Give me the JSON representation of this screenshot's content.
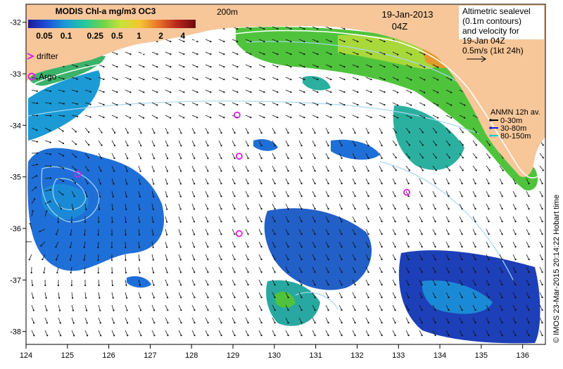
{
  "colorbar": {
    "title": "MODIS Chl-a mg/m3 OC3",
    "ticks": [
      "0.05",
      "0.1",
      "0.25",
      "0.5",
      "1",
      "2",
      "4"
    ],
    "gradient": [
      "#1a1a9a",
      "#1d4fd8",
      "#1b9ad6",
      "#22c7a0",
      "#6bd44a",
      "#c9e23a",
      "#f3c531",
      "#e8732a",
      "#b9241c",
      "#6a0d0d"
    ]
  },
  "legend": {
    "drifter_label": "drifter",
    "argo_label": "Argo"
  },
  "contour_label": "200m",
  "date_text": "19-Jan-2013",
  "time_text": "04Z",
  "altimetry_note": {
    "line1": "Altimetric sealevel",
    "line2": "(0.1m contours)",
    "line3": "and velocity for",
    "line4": "19-Jan 04Z",
    "scale_label": "0.5m/s (1kt 24h)"
  },
  "anmn": {
    "title": "ANMN 12h av.",
    "items": [
      {
        "label": "0-30m",
        "color": "#000000"
      },
      {
        "label": "30-80m",
        "color": "#1a1ad0"
      },
      {
        "label": "80-150m",
        "color": "#22c4c4"
      }
    ]
  },
  "axes": {
    "x_ticks": [
      "124",
      "125",
      "126",
      "127",
      "128",
      "129",
      "130",
      "131",
      "132",
      "133",
      "134",
      "135",
      "136"
    ],
    "y_ticks": [
      "-32",
      "-33",
      "-34",
      "-35",
      "-36",
      "-37",
      "-38"
    ]
  },
  "argo_floats": [
    {
      "lon": 129.1,
      "lat": -33.8
    },
    {
      "lon": 129.15,
      "lat": -34.6
    },
    {
      "lon": 129.15,
      "lat": -36.1
    },
    {
      "lon": 125.25,
      "lat": -34.95
    },
    {
      "lon": 133.2,
      "lat": -35.3
    }
  ],
  "credit": "© IMOS 23-Mar-2015 20:14:22 Hobart time",
  "colors": {
    "land": "#f7c79a",
    "argo": "#e020e0",
    "arrow": "#111111",
    "contour": "#a6d8f0"
  }
}
